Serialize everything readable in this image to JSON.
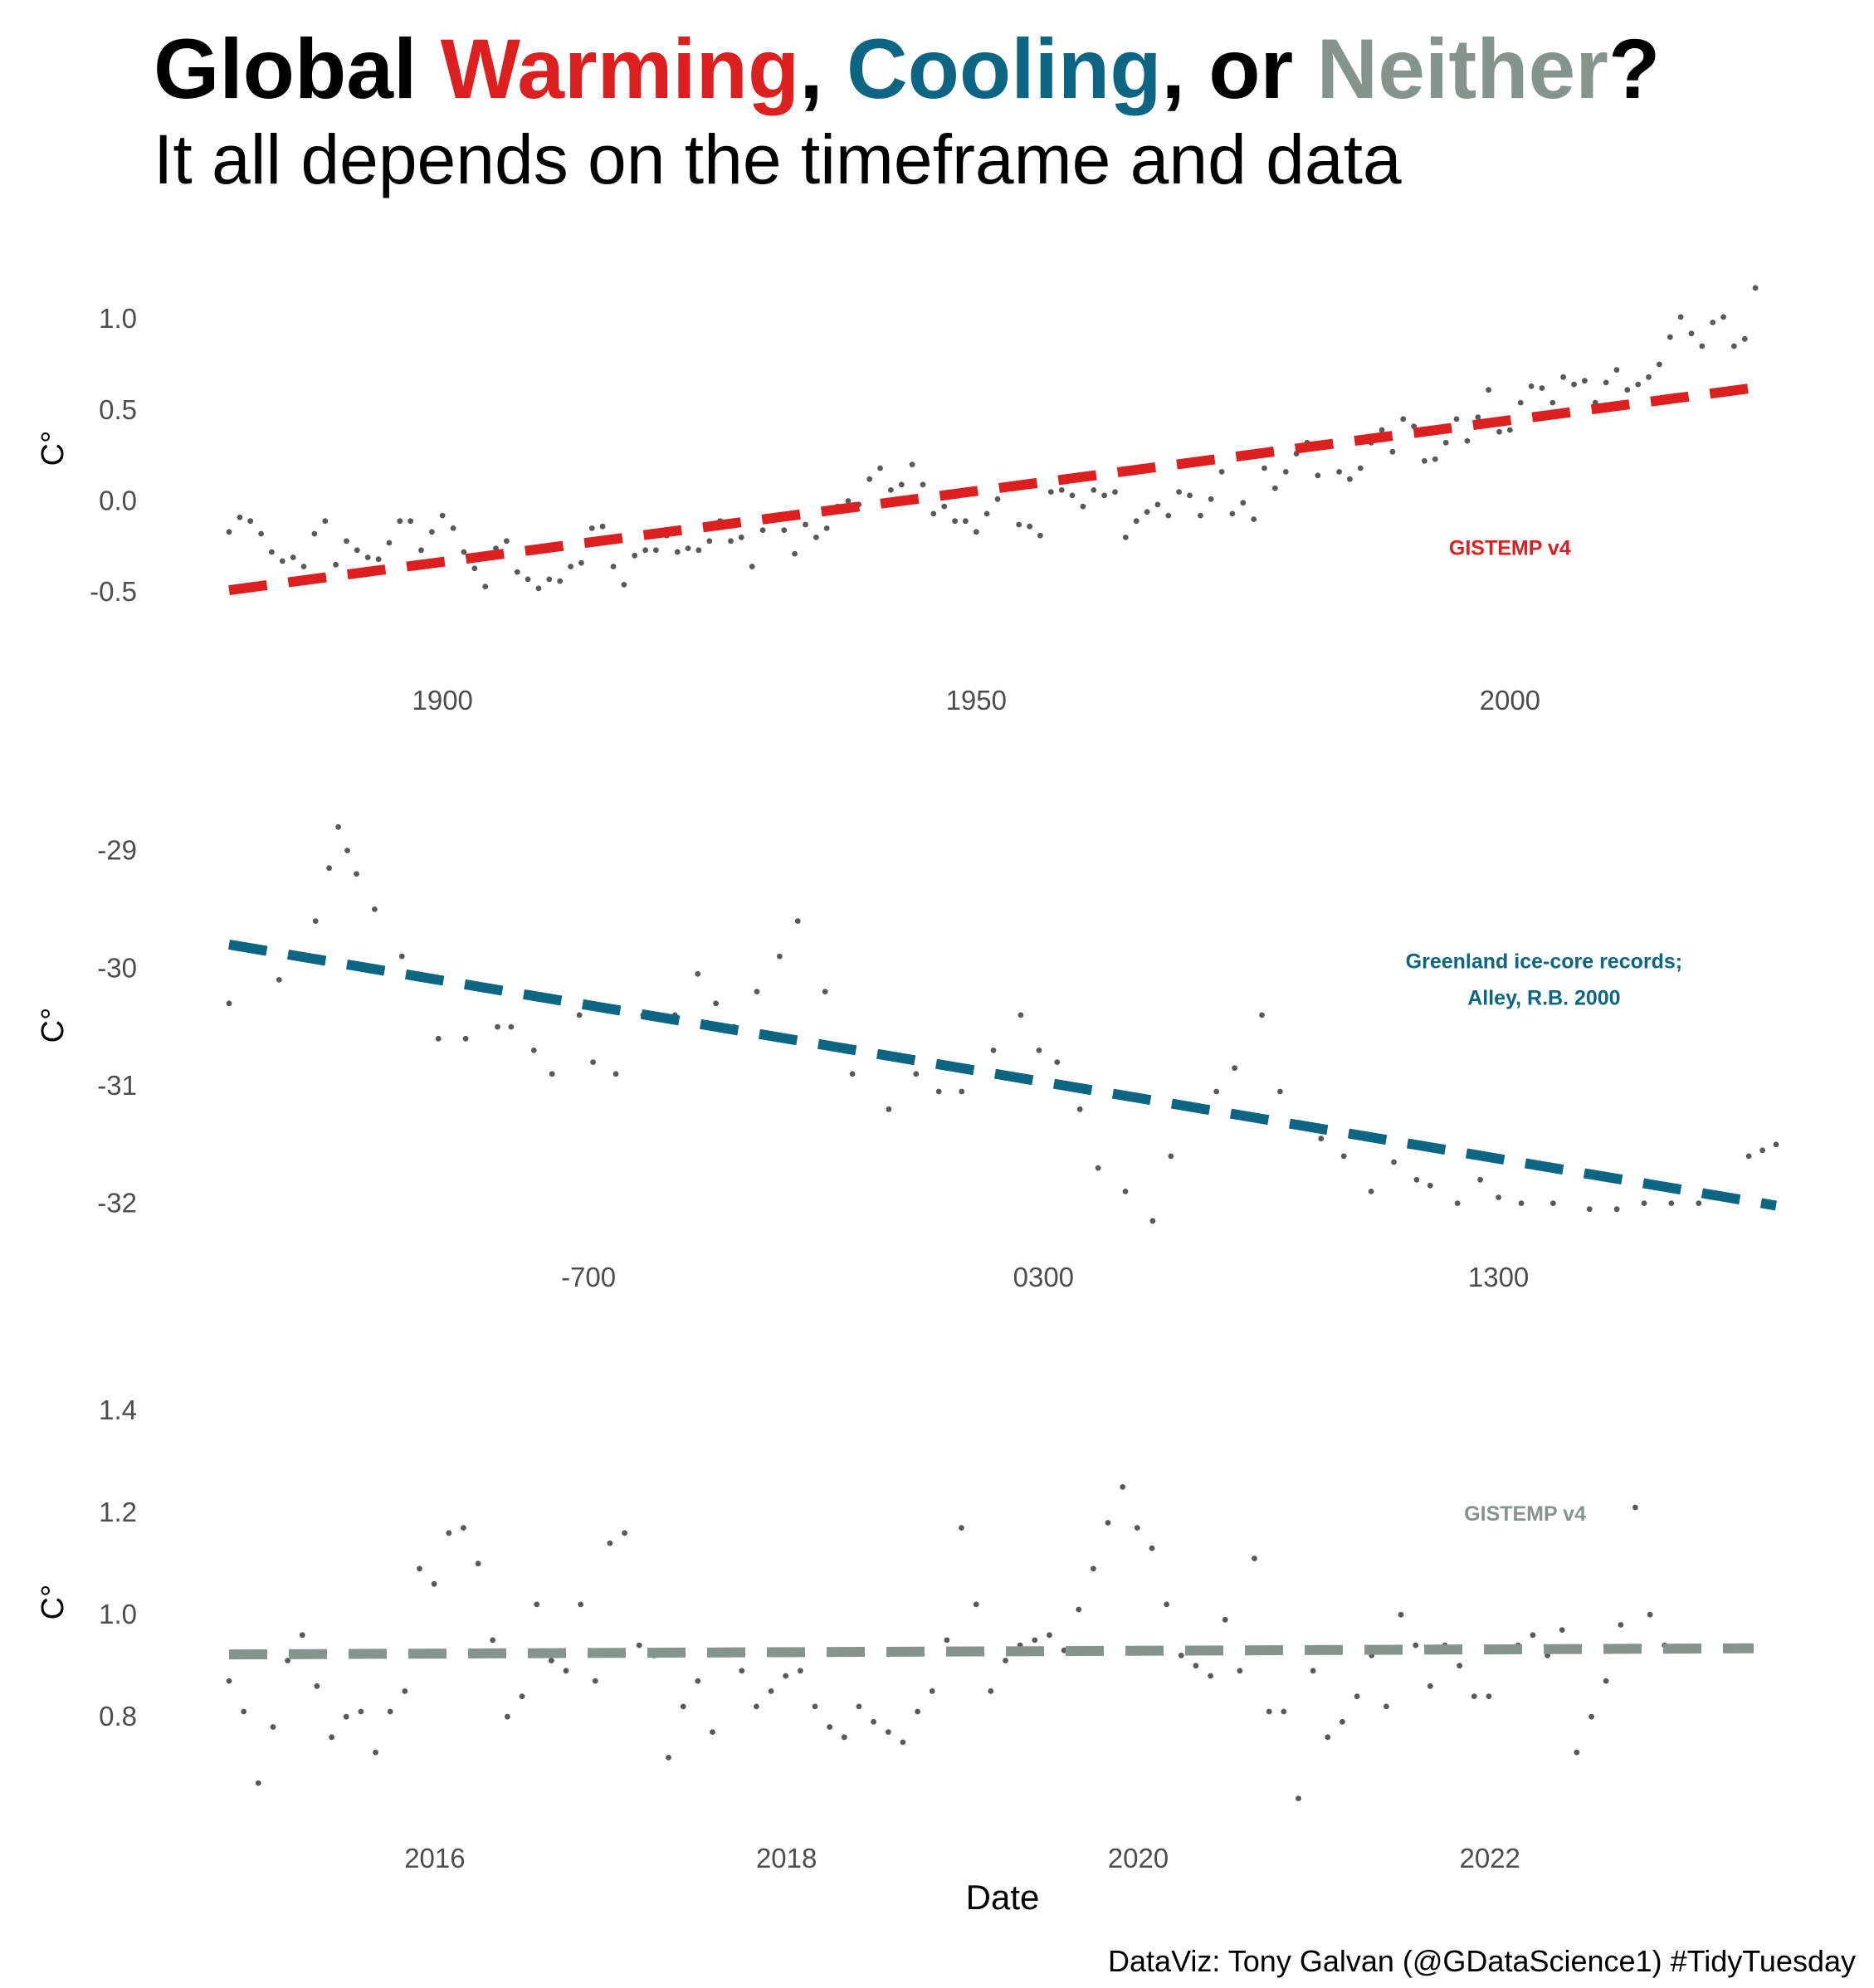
{
  "title": {
    "parts": [
      {
        "text": "Global ",
        "color": "#000000"
      },
      {
        "text": "Warming",
        "color": "#dc1f1f"
      },
      {
        "text": ", ",
        "color": "#000000"
      },
      {
        "text": "Cooling",
        "color": "#0d6584"
      },
      {
        "text": ", or ",
        "color": "#000000"
      },
      {
        "text": "Neither",
        "color": "#85958e"
      },
      {
        "text": "?",
        "color": "#000000"
      }
    ]
  },
  "subtitle": "It all depends on the timeframe and data",
  "caption": "DataViz: Tony Galvan (@GDataScience1) #TidyTuesday",
  "chart_data": [
    {
      "type": "scatter",
      "xlabel": "",
      "ylabel": "C°",
      "x_unit": "year",
      "xlim": [
        1880,
        2024
      ],
      "ylim": [
        -0.85,
        1.42
      ],
      "x_ticks": [
        {
          "value": 1900,
          "label": "1900"
        },
        {
          "value": 1950,
          "label": "1950"
        },
        {
          "value": 2000,
          "label": "2000"
        }
      ],
      "y_ticks": [
        {
          "value": -0.5,
          "label": "-0.5"
        },
        {
          "value": 0,
          "label": "0.0"
        },
        {
          "value": 0.5,
          "label": "0.5"
        },
        {
          "value": 1.0,
          "label": "1.0"
        }
      ],
      "annotation": {
        "text": "GISTEMP v4",
        "x": 2000,
        "y": -0.25,
        "color": "#dc1f1f"
      },
      "trend": {
        "x": [
          1880,
          2024
        ],
        "y": [
          -0.49,
          0.63
        ],
        "color": "#dc1f1f",
        "style": "dashed"
      },
      "points": {
        "color": "#222222",
        "x_start": 1880,
        "x_step": 1,
        "y": [
          -0.17,
          -0.09,
          -0.11,
          -0.18,
          -0.28,
          -0.33,
          -0.31,
          -0.36,
          -0.18,
          -0.11,
          -0.35,
          -0.22,
          -0.27,
          -0.31,
          -0.32,
          -0.23,
          -0.11,
          -0.11,
          -0.27,
          -0.17,
          -0.08,
          -0.15,
          -0.28,
          -0.37,
          -0.47,
          -0.26,
          -0.22,
          -0.39,
          -0.43,
          -0.48,
          -0.43,
          -0.44,
          -0.36,
          -0.34,
          -0.15,
          -0.14,
          -0.36,
          -0.46,
          -0.3,
          -0.27,
          -0.27,
          -0.19,
          -0.28,
          -0.26,
          -0.27,
          -0.22,
          -0.11,
          -0.22,
          -0.2,
          -0.36,
          -0.16,
          -0.1,
          -0.16,
          -0.29,
          -0.13,
          -0.2,
          -0.15,
          -0.03,
          0.0,
          -0.02,
          0.12,
          0.18,
          0.06,
          0.09,
          0.2,
          0.09,
          -0.07,
          -0.03,
          -0.11,
          -0.11,
          -0.17,
          -0.07,
          0.01,
          0.08,
          -0.13,
          -0.14,
          -0.19,
          0.05,
          0.06,
          0.03,
          -0.03,
          0.06,
          0.03,
          0.05,
          -0.2,
          -0.11,
          -0.06,
          -0.02,
          -0.08,
          0.05,
          0.03,
          -0.08,
          0.01,
          0.16,
          -0.07,
          -0.01,
          -0.1,
          0.18,
          0.07,
          0.16,
          0.26,
          0.32,
          0.14,
          0.31,
          0.16,
          0.12,
          0.18,
          0.32,
          0.39,
          0.27,
          0.45,
          0.41,
          0.22,
          0.23,
          0.32,
          0.45,
          0.33,
          0.46,
          0.61,
          0.38,
          0.39,
          0.54,
          0.63,
          0.62,
          0.54,
          0.68,
          0.64,
          0.66,
          0.54,
          0.65,
          0.72,
          0.61,
          0.64,
          0.68,
          0.75,
          0.9,
          1.01,
          0.92,
          0.85,
          0.98,
          1.01,
          0.85,
          0.89,
          1.17
        ]
      }
    },
    {
      "type": "scatter",
      "xlabel": "",
      "ylabel": "C°",
      "x_unit": "year",
      "xlim": [
        -1490,
        1910
      ],
      "ylim": [
        -32.25,
        -28.65
      ],
      "x_ticks": [
        {
          "value": -700,
          "label": "-700"
        },
        {
          "value": 300,
          "label": "0300"
        },
        {
          "value": 1300,
          "label": "1300"
        }
      ],
      "y_ticks": [
        {
          "value": -32,
          "label": "-32"
        },
        {
          "value": -31,
          "label": "-31"
        },
        {
          "value": -30,
          "label": "-30"
        },
        {
          "value": -29,
          "label": "-29"
        }
      ],
      "annotation": {
        "lines": [
          "Greenland ice-core records;",
          "Alley, R.B. 2000"
        ],
        "x": 1400,
        "y": -30.0,
        "color": "#0d6584"
      },
      "trend": {
        "x": [
          -1490,
          1910
        ],
        "y": [
          -29.8,
          -32.02
        ],
        "color": "#0d6584",
        "style": "dashed"
      },
      "points": {
        "color": "#222222",
        "x": [
          -1490,
          -1380,
          -1300,
          -1270,
          -1250,
          -1230,
          -1210,
          -1170,
          -1110,
          -1030,
          -970,
          -900,
          -870,
          -820,
          -780,
          -720,
          -690,
          -640,
          -580,
          -510,
          -460,
          -420,
          -380,
          -330,
          -280,
          -240,
          -180,
          -120,
          -40,
          20,
          70,
          120,
          190,
          250,
          290,
          330,
          380,
          420,
          480,
          540,
          580,
          640,
          680,
          720,
          780,
          820,
          860,
          910,
          960,
          1020,
          1070,
          1120,
          1150,
          1210,
          1260,
          1300,
          1350,
          1420,
          1500,
          1560,
          1620,
          1680,
          1740,
          1800,
          1850,
          1880,
          1910
        ],
        "y": [
          -30.3,
          -30.1,
          -29.6,
          -29.15,
          -28.8,
          -29.0,
          -29.2,
          -29.5,
          -29.9,
          -30.6,
          -30.6,
          -30.5,
          -30.5,
          -30.7,
          -30.9,
          -30.4,
          -30.8,
          -30.9,
          -30.4,
          -30.4,
          -30.05,
          -30.3,
          -30.5,
          -30.2,
          -29.9,
          -29.6,
          -30.2,
          -30.9,
          -31.2,
          -30.9,
          -31.05,
          -31.05,
          -30.7,
          -30.4,
          -30.7,
          -30.8,
          -31.2,
          -31.7,
          -31.9,
          -32.15,
          -31.6,
          -31.2,
          -31.05,
          -30.85,
          -30.4,
          -31.05,
          -31.35,
          -31.45,
          -31.6,
          -31.9,
          -31.65,
          -31.8,
          -31.85,
          -32.0,
          -31.8,
          -31.95,
          -32.0,
          -32.0,
          -32.05,
          -32.05,
          -32.0,
          -32.0,
          -32.0,
          -31.95,
          -31.6,
          -31.55,
          -31.5
        ]
      }
    },
    {
      "type": "scatter",
      "xlabel": "Date",
      "ylabel": "C°",
      "x_unit": "year",
      "xlim": [
        2014.83,
        2023.58
      ],
      "ylim": [
        0.61,
        1.48
      ],
      "x_ticks": [
        {
          "value": 2016,
          "label": "2016"
        },
        {
          "value": 2018,
          "label": "2018"
        },
        {
          "value": 2020,
          "label": "2020"
        },
        {
          "value": 2022,
          "label": "2022"
        }
      ],
      "y_ticks": [
        {
          "value": 0.8,
          "label": "0.8"
        },
        {
          "value": 1.0,
          "label": "1.0"
        },
        {
          "value": 1.2,
          "label": "1.2"
        },
        {
          "value": 1.4,
          "label": "1.4"
        }
      ],
      "annotation": {
        "text": "GISTEMP v4",
        "x": 2022.2,
        "y": 1.2,
        "color": "#85958e"
      },
      "trend": {
        "x": [
          2014.83,
          2023.5
        ],
        "y": [
          0.922,
          0.934
        ],
        "color": "#85958e",
        "style": "dashed"
      },
      "points": {
        "color": "#222222",
        "x_start": 2014.83,
        "x_step": 0.0833,
        "y": [
          0.87,
          0.81,
          0.67,
          0.78,
          0.91,
          0.96,
          0.86,
          0.76,
          0.8,
          0.81,
          0.73,
          0.81,
          0.85,
          1.09,
          1.06,
          1.16,
          1.17,
          1.1,
          0.95,
          0.8,
          0.84,
          1.02,
          0.91,
          0.89,
          1.02,
          0.87,
          1.14,
          1.16,
          0.94,
          0.92,
          0.72,
          0.82,
          0.87,
          0.77,
          0.93,
          0.89,
          0.82,
          0.85,
          0.88,
          0.89,
          0.82,
          0.78,
          0.76,
          0.82,
          0.79,
          0.77,
          0.75,
          0.81,
          0.85,
          0.95,
          1.17,
          1.02,
          0.85,
          0.91,
          0.94,
          0.95,
          0.96,
          0.93,
          1.01,
          1.09,
          1.18,
          1.25,
          1.17,
          1.13,
          1.02,
          0.92,
          0.9,
          0.88,
          0.99,
          0.89,
          1.11,
          0.81,
          0.81,
          0.64,
          0.89,
          0.76,
          0.79,
          0.84,
          0.92,
          0.82,
          1.0,
          0.94,
          0.86,
          0.94,
          0.9,
          0.84,
          0.84,
          0.93,
          0.94,
          0.96,
          0.92,
          0.97,
          0.73,
          0.8,
          0.87,
          0.98,
          1.21,
          1.0,
          0.94
        ]
      }
    }
  ]
}
